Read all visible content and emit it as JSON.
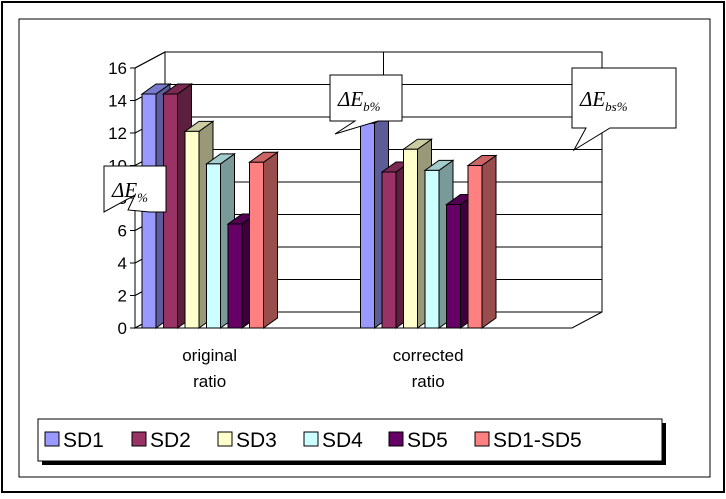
{
  "chart_data": {
    "type": "bar",
    "style": "3d-clustered-column",
    "categories": [
      "original ratio",
      "corrected ratio"
    ],
    "category_lines": [
      [
        "original",
        "ratio"
      ],
      [
        "corrected",
        "ratio"
      ]
    ],
    "series": [
      {
        "name": "SD1",
        "values": [
          14.4,
          12.6
        ],
        "color": "#9999ff"
      },
      {
        "name": "SD2",
        "values": [
          14.4,
          9.6
        ],
        "color": "#993366"
      },
      {
        "name": "SD3",
        "values": [
          12.1,
          11.0
        ],
        "color": "#ffffcc"
      },
      {
        "name": "SD4",
        "values": [
          10.1,
          9.7
        ],
        "color": "#ccffff"
      },
      {
        "name": "SD5",
        "values": [
          6.4,
          7.6
        ],
        "color": "#660066"
      },
      {
        "name": "SD1-SD5",
        "values": [
          10.2,
          10.0
        ],
        "color": "#ff8080"
      }
    ],
    "y_ticks": [
      "0",
      "2",
      "4",
      "6",
      "8",
      "10",
      "12",
      "14",
      "16"
    ],
    "ylim": [
      0,
      16
    ],
    "grid": true,
    "legend_position": "bottom",
    "callouts": [
      {
        "symbol": "ΔE",
        "subscript": "%"
      },
      {
        "symbol": "ΔE",
        "subscript": "b%"
      },
      {
        "symbol": "ΔE",
        "subscript": "bs%"
      }
    ]
  }
}
